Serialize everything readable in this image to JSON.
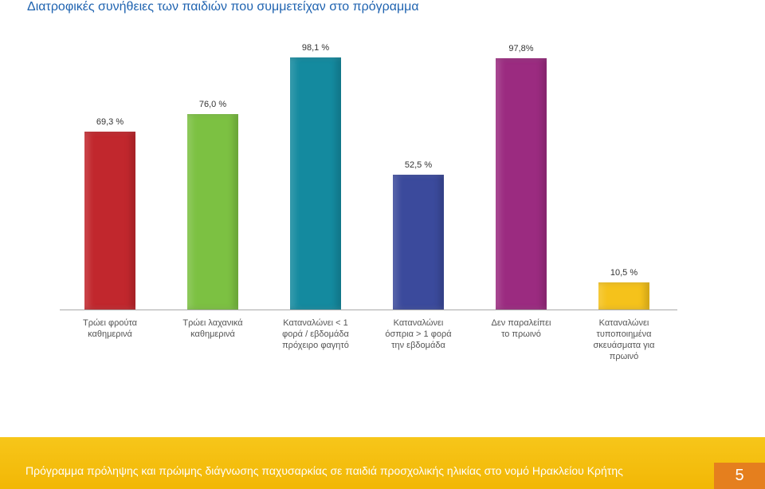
{
  "chart_data": {
    "type": "bar",
    "title": "Διατροφικές συνήθειες των παιδιών που συμμετείχαν στο πρόγραμμα",
    "categories": [
      "Τρώει φρούτα\nκαθημερινά",
      "Τρώει λαχανικά\nκαθημερινά",
      "Καταναλώνει < 1\nφορά / εβδομάδα\nπρόχειρο φαγητό",
      "Καταναλώνει\nόσπρια > 1 φορά\nτην εβδομάδα",
      "Δεν παραλείπει\nτο πρωινό",
      "Καταναλώνει\nτυποποιημένα\nσκευάσματα για\nπρωινό"
    ],
    "values": [
      69.3,
      76.0,
      98.1,
      52.5,
      97.8,
      10.5
    ],
    "value_labels": [
      "69,3 %",
      "76,0 %",
      "98,1 %",
      "52,5 %",
      "97,8%",
      "10,5 %"
    ],
    "colors": [
      "#c1272d",
      "#7cc142",
      "#148a9f",
      "#3b4a9c",
      "#9b2b80",
      "#f5c21b"
    ]
  },
  "footer": "Πρόγραμμα πρόληψης και πρώιμης διάγνωσης παχυσαρκίας σε παιδιά προσχολικής ηλικίας στο νομό Ηρακλείου Κρήτης",
  "page_number": "5"
}
